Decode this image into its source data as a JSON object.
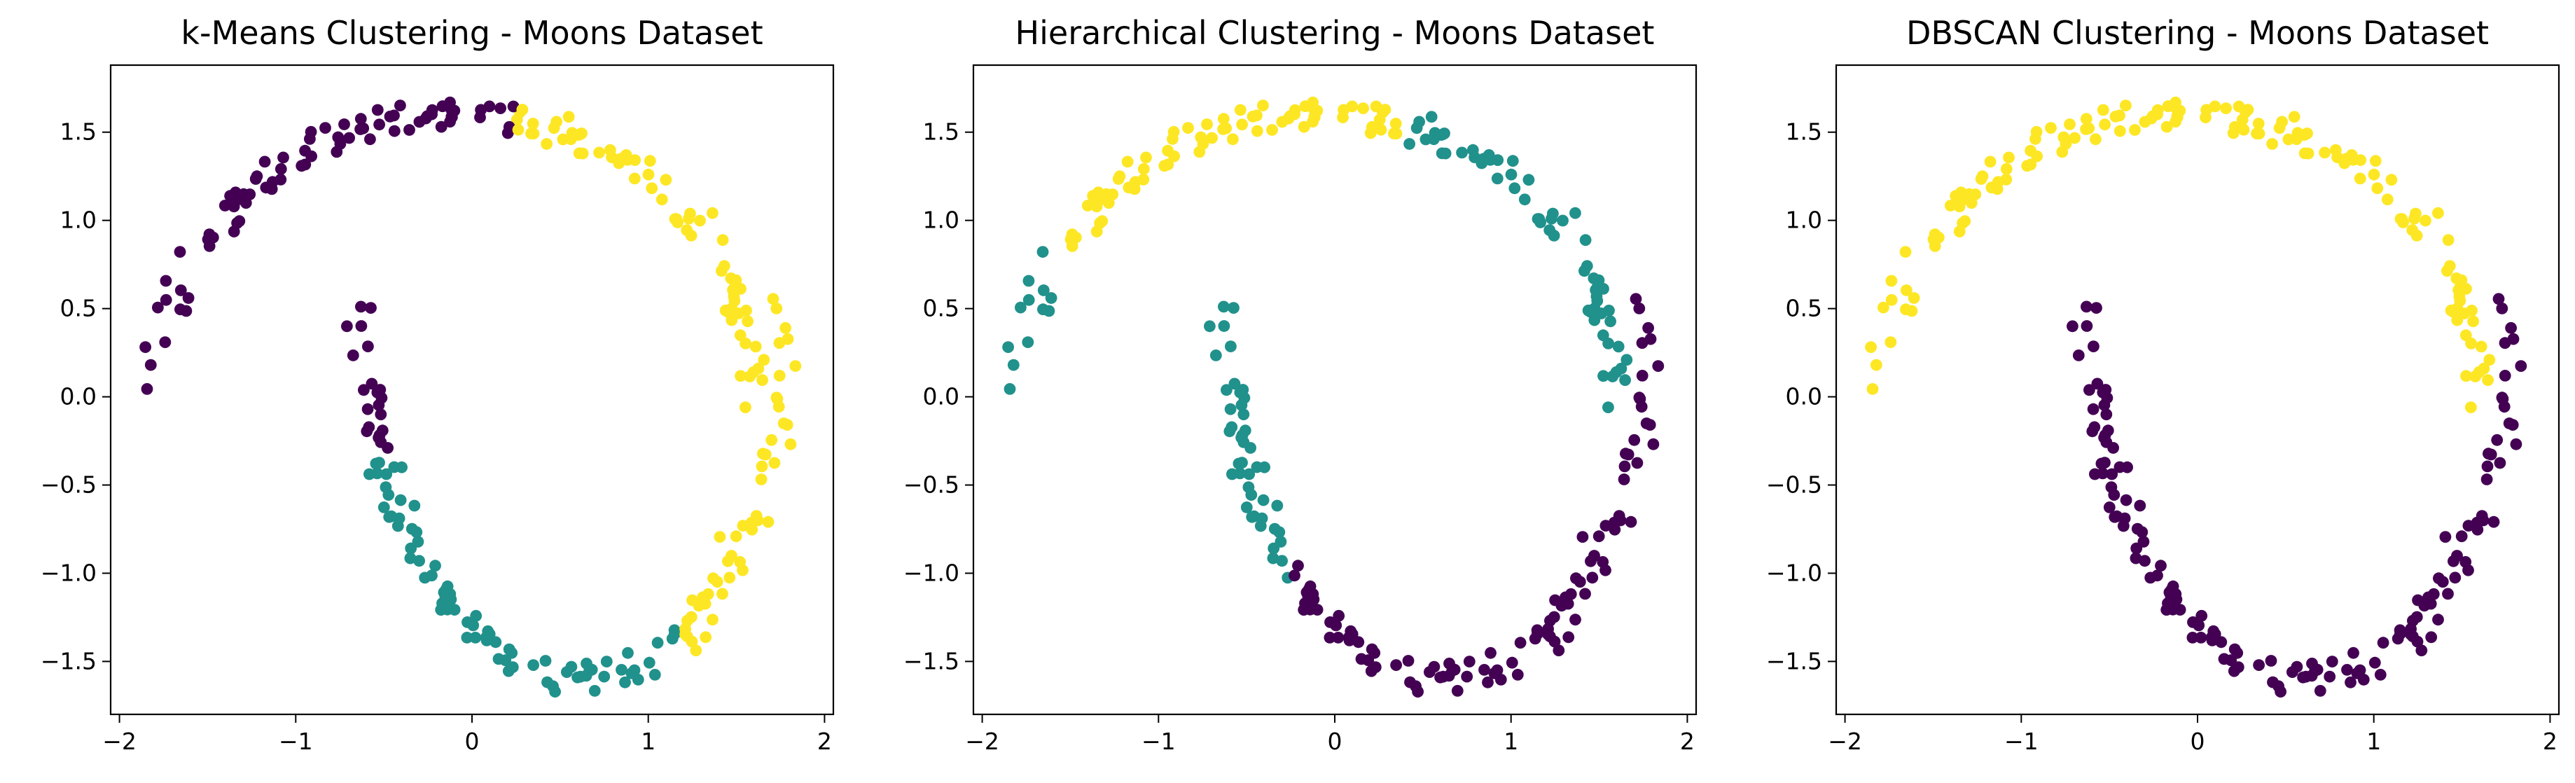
{
  "colors": {
    "cluster_0": "#440154",
    "cluster_1": "#21918c",
    "cluster_2": "#fde725",
    "axes": "#000000",
    "background": "#ffffff"
  },
  "chart_data": [
    {
      "type": "scatter",
      "title": "k-Means Clustering - Moons Dataset",
      "xlabel": "",
      "ylabel": "",
      "xlim": [
        -2.05,
        2.05
      ],
      "ylim": [
        -1.8,
        1.88
      ],
      "xticks": [
        -2,
        -1,
        0,
        1,
        2
      ],
      "xtick_labels": [
        "−2",
        "−1",
        "0",
        "1",
        "2"
      ],
      "yticks": [
        -1.5,
        -1.0,
        -0.5,
        0.0,
        0.5,
        1.0,
        1.5
      ],
      "ytick_labels": [
        "−1.5",
        "−1.0",
        "−0.5",
        "0.0",
        "0.5",
        "1.0",
        "1.5"
      ],
      "grid": false,
      "legend": "none",
      "cluster_rule": "kmeans",
      "point_size": 12
    },
    {
      "type": "scatter",
      "title": "Hierarchical Clustering - Moons Dataset",
      "xlabel": "",
      "ylabel": "",
      "xlim": [
        -2.05,
        2.05
      ],
      "ylim": [
        -1.8,
        1.88
      ],
      "xticks": [
        -2,
        -1,
        0,
        1,
        2
      ],
      "xtick_labels": [
        "−2",
        "−1",
        "0",
        "1",
        "2"
      ],
      "yticks": [
        -1.5,
        -1.0,
        -0.5,
        0.0,
        0.5,
        1.0,
        1.5
      ],
      "ytick_labels": [
        "−1.5",
        "−1.0",
        "−0.5",
        "0.0",
        "0.5",
        "1.0",
        "1.5"
      ],
      "grid": false,
      "legend": "none",
      "cluster_rule": "hierarchical",
      "point_size": 12
    },
    {
      "type": "scatter",
      "title": "DBSCAN Clustering - Moons Dataset",
      "xlabel": "",
      "ylabel": "",
      "xlim": [
        -2.05,
        2.05
      ],
      "ylim": [
        -1.8,
        1.88
      ],
      "xticks": [
        -2,
        -1,
        0,
        1,
        2
      ],
      "xtick_labels": [
        "−2",
        "−1",
        "0",
        "1",
        "2"
      ],
      "yticks": [
        -1.5,
        -1.0,
        -0.5,
        0.0,
        0.5,
        1.0,
        1.5
      ],
      "ytick_labels": [
        "−1.5",
        "−1.0",
        "−0.5",
        "0.0",
        "0.5",
        "1.0",
        "1.5"
      ],
      "grid": false,
      "legend": "none",
      "cluster_rule": "dbscan",
      "point_size": 12
    }
  ]
}
